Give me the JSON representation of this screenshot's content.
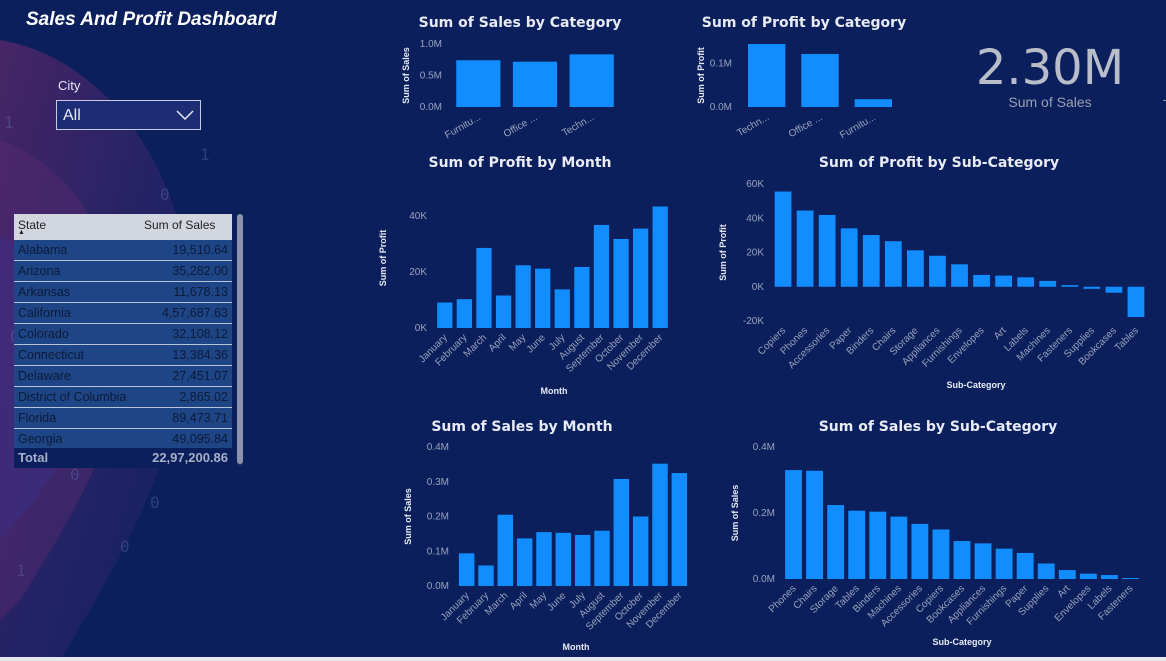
{
  "header": {
    "title": "Sales And Profit Dashboard"
  },
  "filter": {
    "label": "City",
    "value": "All"
  },
  "table": {
    "headers": [
      "State",
      "Sum of Sales"
    ],
    "rows": [
      [
        "Alabama",
        "19,510.64"
      ],
      [
        "Arizona",
        "35,282.00"
      ],
      [
        "Arkansas",
        "11,678.13"
      ],
      [
        "California",
        "4,57,687.63"
      ],
      [
        "Colorado",
        "32,108.12"
      ],
      [
        "Connecticut",
        "13,384.36"
      ],
      [
        "Delaware",
        "27,451.07"
      ],
      [
        "District of Columbia",
        "2,865.02"
      ],
      [
        "Florida",
        "89,473.71"
      ],
      [
        "Georgia",
        "49,095.84"
      ]
    ],
    "total_label": "Total",
    "total_value": "22,97,200.86"
  },
  "kpi": {
    "value": "2.30M",
    "label": "Sum of Sales"
  },
  "colors": {
    "bar": "#118dff",
    "background": "#0b1f5c"
  },
  "chart_data": [
    {
      "id": "sales-by-category",
      "type": "bar",
      "title": "Sum of Sales by Category",
      "categories": [
        "Furnitu...",
        "Office ...",
        "Techn..."
      ],
      "values": [
        0.742,
        0.719,
        0.836
      ],
      "unit": "M",
      "ylabel": "Sum of Sales",
      "xlabel": "",
      "ylim": [
        0,
        1.0
      ],
      "ticks": [
        "0.0M",
        "0.5M",
        "1.0M"
      ],
      "tickvals": [
        0,
        0.5,
        1.0
      ]
    },
    {
      "id": "profit-by-category",
      "type": "bar",
      "title": "Sum of Profit by Category",
      "categories": [
        "Techn...",
        "Office ...",
        "Furnitu..."
      ],
      "values": [
        0.145,
        0.122,
        0.018
      ],
      "unit": "M",
      "ylabel": "Sum of Profit",
      "xlabel": "",
      "ylim": [
        0,
        0.145
      ],
      "ticks": [
        "0.0M",
        "0.1M"
      ],
      "tickvals": [
        0,
        0.1
      ]
    },
    {
      "id": "profit-by-month",
      "type": "bar",
      "title": "Sum of Profit by Month",
      "categories": [
        "January",
        "February",
        "March",
        "April",
        "May",
        "June",
        "July",
        "August",
        "September",
        "October",
        "November",
        "December"
      ],
      "values": [
        9100,
        10300,
        28600,
        11600,
        22400,
        21200,
        13800,
        21800,
        36800,
        31800,
        35500,
        43400
      ],
      "ylabel": "Sum of Profit",
      "xlabel": "Month",
      "ylim": [
        0,
        50000
      ],
      "ticks": [
        "0K",
        "20K",
        "40K"
      ],
      "tickvals": [
        0,
        20000,
        40000
      ]
    },
    {
      "id": "profit-by-subcategory",
      "type": "bar",
      "title": "Sum of Profit by Sub-Category",
      "categories": [
        "Copiers",
        "Phones",
        "Accessories",
        "Paper",
        "Binders",
        "Chairs",
        "Storage",
        "Appliances",
        "Furnishings",
        "Envelopes",
        "Art",
        "Labels",
        "Machines",
        "Fasteners",
        "Supplies",
        "Bookcases",
        "Tables"
      ],
      "values": [
        55600,
        44500,
        41900,
        34100,
        30200,
        26600,
        21300,
        18100,
        13100,
        6900,
        6500,
        5500,
        3400,
        950,
        -1200,
        -3500,
        -17700
      ],
      "ylabel": "Sum of Profit",
      "xlabel": "Sub-Category",
      "ylim": [
        -20000,
        60000
      ],
      "ticks": [
        "-20K",
        "0K",
        "20K",
        "40K",
        "60K"
      ],
      "tickvals": [
        -20000,
        0,
        20000,
        40000,
        60000
      ]
    },
    {
      "id": "sales-by-month",
      "type": "bar",
      "title": "Sum of Sales by Month",
      "categories": [
        "January",
        "February",
        "March",
        "April",
        "May",
        "June",
        "July",
        "August",
        "September",
        "October",
        "November",
        "December"
      ],
      "values": [
        0.094,
        0.059,
        0.205,
        0.137,
        0.155,
        0.153,
        0.147,
        0.159,
        0.308,
        0.2,
        0.352,
        0.325
      ],
      "unit": "M",
      "ylabel": "Sum of Sales",
      "xlabel": "Month",
      "ylim": [
        0,
        0.4
      ],
      "ticks": [
        "0.0M",
        "0.1M",
        "0.2M",
        "0.3M",
        "0.4M"
      ],
      "tickvals": [
        0,
        0.1,
        0.2,
        0.3,
        0.4
      ]
    },
    {
      "id": "sales-by-subcategory",
      "type": "bar",
      "title": "Sum of Sales by Sub-Category",
      "categories": [
        "Phones",
        "Chairs",
        "Storage",
        "Tables",
        "Binders",
        "Machines",
        "Accessories",
        "Copiers",
        "Bookcases",
        "Appliances",
        "Furnishings",
        "Paper",
        "Supplies",
        "Art",
        "Envelopes",
        "Labels",
        "Fasteners"
      ],
      "values": [
        0.33,
        0.328,
        0.224,
        0.207,
        0.204,
        0.189,
        0.167,
        0.15,
        0.115,
        0.108,
        0.092,
        0.079,
        0.047,
        0.027,
        0.016,
        0.012,
        0.003
      ],
      "unit": "M",
      "ylabel": "Sum of Sales",
      "xlabel": "Sub-Category",
      "ylim": [
        0,
        0.4
      ],
      "ticks": [
        "0.0M",
        "0.2M",
        "0.4M"
      ],
      "tickvals": [
        0,
        0.2,
        0.4
      ]
    }
  ]
}
